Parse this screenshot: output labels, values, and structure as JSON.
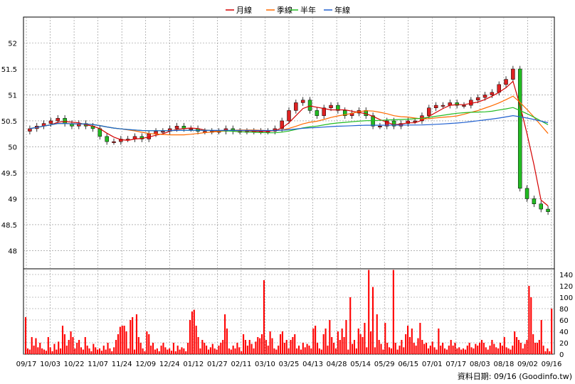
{
  "legend": {
    "items": [
      {
        "label": "月線",
        "color": "#d40000"
      },
      {
        "label": "季線",
        "color": "#ff6a00"
      },
      {
        "label": "半年",
        "color": "#22bb22"
      },
      {
        "label": "年線",
        "color": "#2060d0"
      }
    ]
  },
  "footer": {
    "text": "資料日期: 09/16  (Goodinfo.tw)"
  },
  "colors": {
    "up": "#dd2222",
    "down": "#22bb22",
    "volume": "#ff0000",
    "grid": "#888888"
  },
  "chart_data": {
    "type": "candlestick+volume",
    "x_tick_labels": [
      "09/17",
      "10/03",
      "10/22",
      "11/07",
      "11/24",
      "12/09",
      "12/24",
      "01/12",
      "01/27",
      "02/11",
      "03/10",
      "03/25",
      "04/13",
      "04/28",
      "05/14",
      "05/29",
      "06/15",
      "07/01",
      "07/17",
      "08/03",
      "08/18",
      "09/02",
      "09/16"
    ],
    "price_axis": {
      "ticks": [
        48,
        48.5,
        49,
        49.5,
        50,
        50.5,
        51,
        51.5,
        52
      ],
      "ylim": [
        47.65,
        52.5
      ]
    },
    "volume_axis": {
      "ticks": [
        0,
        20,
        40,
        60,
        80,
        100,
        120,
        140
      ],
      "ylim": [
        0,
        150
      ]
    },
    "grid": true,
    "legend_position": "top-center",
    "closes": [
      50.35,
      50.4,
      50.45,
      50.5,
      50.55,
      50.45,
      50.4,
      50.45,
      50.4,
      50.35,
      50.2,
      50.1,
      50.1,
      50.15,
      50.15,
      50.2,
      50.15,
      50.25,
      50.3,
      50.3,
      50.35,
      50.4,
      50.35,
      50.35,
      50.3,
      50.3,
      50.3,
      50.3,
      50.35,
      50.3,
      50.3,
      50.3,
      50.3,
      50.3,
      50.3,
      50.35,
      50.5,
      50.7,
      50.85,
      50.9,
      50.7,
      50.6,
      50.75,
      50.8,
      50.7,
      50.6,
      50.65,
      50.7,
      50.6,
      50.4,
      50.4,
      50.5,
      50.4,
      50.45,
      50.5,
      50.5,
      50.6,
      50.75,
      50.8,
      50.8,
      50.85,
      50.8,
      50.8,
      50.9,
      50.95,
      51.0,
      51.05,
      51.2,
      51.3,
      51.5,
      49.2,
      49.0,
      48.9,
      48.8,
      48.75
    ],
    "volume_daily": [
      65,
      10,
      8,
      30,
      15,
      28,
      12,
      20,
      10,
      8,
      6,
      30,
      12,
      5,
      18,
      8,
      22,
      10,
      50,
      35,
      15,
      25,
      40,
      30,
      10,
      20,
      25,
      12,
      8,
      30,
      15,
      10,
      5,
      18,
      12,
      8,
      10,
      6,
      15,
      8,
      20,
      10,
      5,
      12,
      25,
      35,
      48,
      50,
      50,
      40,
      10,
      60,
      65,
      8,
      70,
      30,
      20,
      10,
      5,
      40,
      35,
      15,
      20,
      8,
      10,
      5,
      15,
      20,
      12,
      8,
      10,
      6,
      20,
      5,
      15,
      8,
      12,
      10,
      5,
      20,
      60,
      75,
      78,
      50,
      30,
      10,
      25,
      20,
      15,
      8,
      12,
      18,
      10,
      8,
      15,
      20,
      25,
      70,
      45,
      10,
      8,
      15,
      10,
      20,
      12,
      5,
      35,
      25,
      15,
      25,
      18,
      10,
      22,
      30,
      28,
      35,
      130,
      25,
      15,
      40,
      28,
      10,
      8,
      15,
      35,
      40,
      20,
      25,
      10,
      25,
      30,
      35,
      10,
      15,
      8,
      20,
      12,
      18,
      15,
      10,
      45,
      50,
      20,
      10,
      8,
      35,
      45,
      15,
      60,
      30,
      20,
      10,
      40,
      25,
      45,
      30,
      60,
      8,
      100,
      18,
      25,
      10,
      45,
      35,
      30,
      55,
      12,
      148,
      40,
      118,
      12,
      70,
      25,
      18,
      8,
      55,
      20,
      12,
      10,
      148,
      20,
      8,
      15,
      25,
      12,
      35,
      50,
      30,
      45,
      20,
      15,
      28,
      55,
      25,
      18,
      20,
      10,
      15,
      22,
      12,
      8,
      45,
      15,
      20,
      10,
      8,
      15,
      25,
      15,
      20,
      10,
      12,
      8,
      10,
      8,
      15,
      20,
      12,
      10,
      18,
      15,
      20,
      25,
      20,
      12,
      8,
      15,
      25,
      18,
      12,
      10,
      20,
      15,
      30,
      12,
      10,
      8,
      15,
      40,
      30,
      25,
      20,
      10,
      18,
      25,
      120,
      100,
      35,
      20,
      20,
      25,
      60,
      15,
      5,
      10,
      5,
      80
    ]
  }
}
